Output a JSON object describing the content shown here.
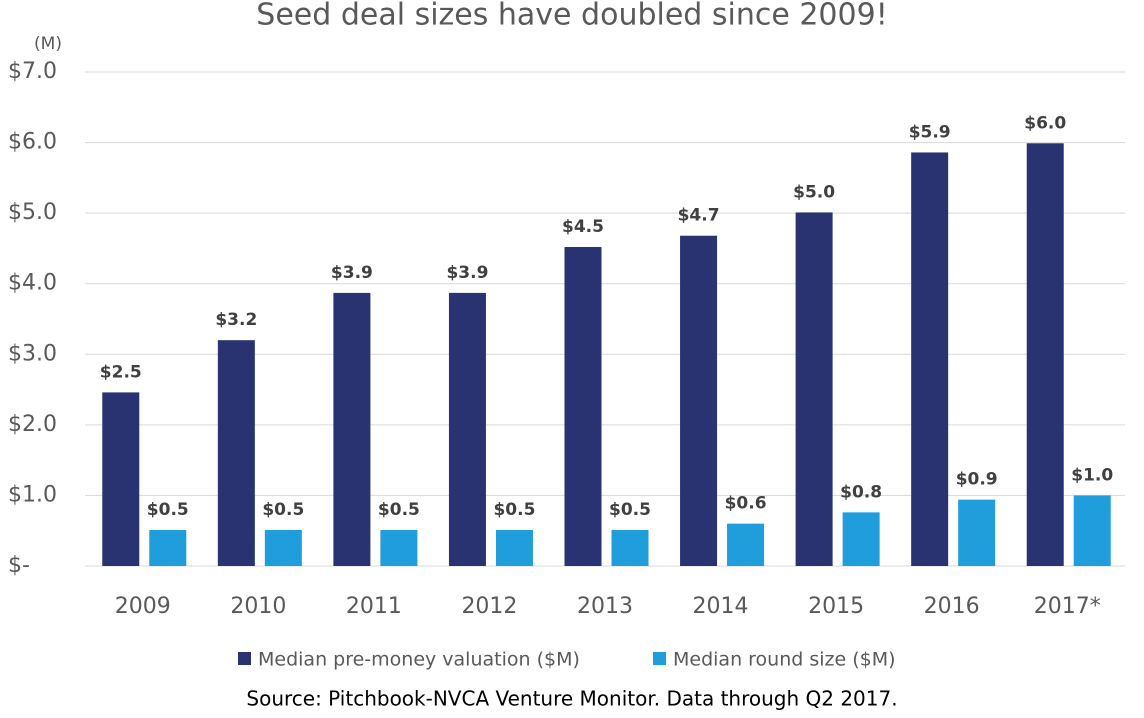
{
  "chart_data": {
    "type": "bar",
    "title": "Seed deal sizes have doubled since 2009!",
    "y_unit_label": "(M)",
    "source": "Source: Pitchbook-NVCA Venture Monitor. Data through Q2 2017.",
    "categories": [
      "2009",
      "2010",
      "2011",
      "2012",
      "2013",
      "2014",
      "2015",
      "2016",
      "2017*"
    ],
    "series": [
      {
        "name": "Median pre-money valuation ($M)",
        "color": "#293372",
        "values": [
          2.46,
          3.2,
          3.87,
          3.87,
          4.52,
          4.68,
          5.01,
          5.86,
          5.99
        ],
        "value_labels": [
          "$2.5",
          "$3.2",
          "$3.9",
          "$3.9",
          "$4.5",
          "$4.7",
          "$5.0",
          "$5.9",
          "$6.0"
        ]
      },
      {
        "name": "Median round size ($M)",
        "color": "#1f9edb",
        "values": [
          0.51,
          0.51,
          0.51,
          0.51,
          0.51,
          0.6,
          0.76,
          0.94,
          1.0
        ],
        "value_labels": [
          "$0.5",
          "$0.5",
          "$0.5",
          "$0.5",
          "$0.5",
          "$0.6",
          "$0.8",
          "$0.9",
          "$1.0"
        ]
      }
    ],
    "ylim": [
      0,
      7
    ],
    "yticks": [
      {
        "value": 0,
        "label": "$-"
      },
      {
        "value": 1,
        "label": "$1.0"
      },
      {
        "value": 2,
        "label": "$2.0"
      },
      {
        "value": 3,
        "label": "$3.0"
      },
      {
        "value": 4,
        "label": "$4.0"
      },
      {
        "value": 5,
        "label": "$5.0"
      },
      {
        "value": 6,
        "label": "$6.0"
      },
      {
        "value": 7,
        "label": "$7.0"
      }
    ],
    "grid": true,
    "legend": "bottom"
  }
}
